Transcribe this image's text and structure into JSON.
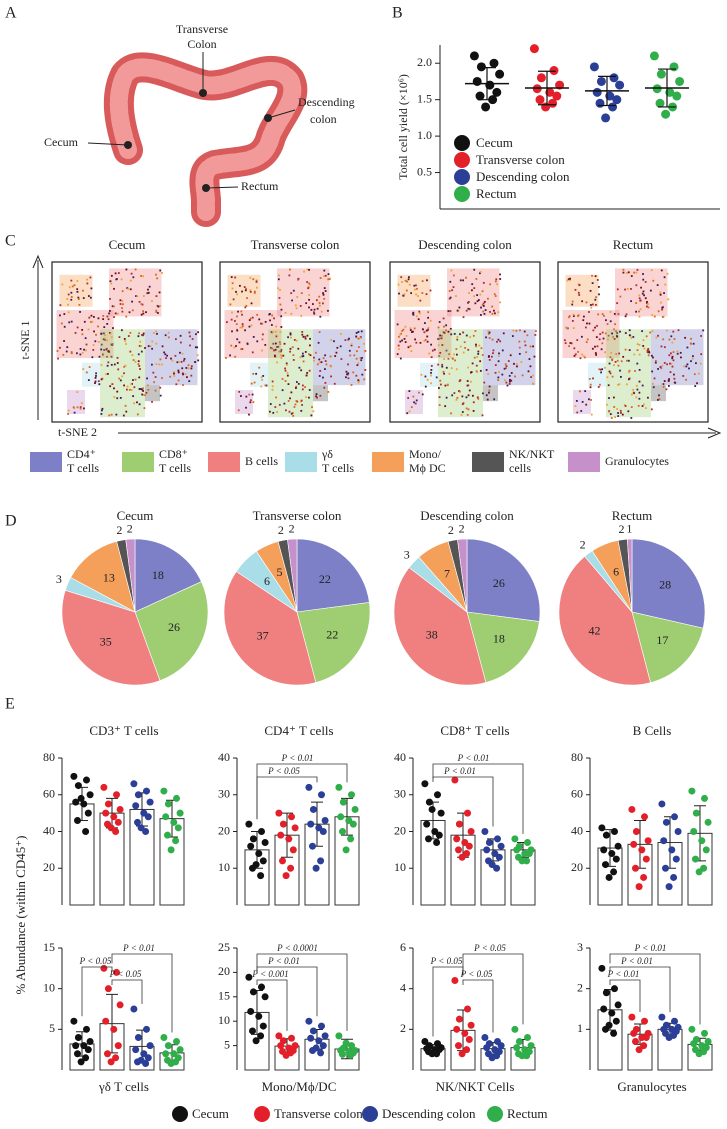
{
  "panel_labels": [
    "A",
    "B",
    "C",
    "D",
    "E"
  ],
  "diagram": {
    "transverse": [
      "Transverse",
      "Colon"
    ],
    "descending": [
      "Descending",
      "colon"
    ],
    "cecum": "Cecum",
    "rectum": "Rectum"
  },
  "groups": [
    {
      "name": "Cecum",
      "color": "#111111"
    },
    {
      "name": "Transverse colon",
      "color": "#e3202a"
    },
    {
      "name": "Descending colon",
      "color": "#2b3f97"
    },
    {
      "name": "Rectum",
      "color": "#2fae4a"
    }
  ],
  "cell_types": [
    {
      "lines": [
        "CD4⁺",
        "T cells"
      ],
      "color": "#7d80c6"
    },
    {
      "lines": [
        "CD8⁺",
        "T cells"
      ],
      "color": "#9fcd72"
    },
    {
      "lines": [
        "B cells"
      ],
      "color": "#f08080"
    },
    {
      "lines": [
        "γδ",
        "T cells"
      ],
      "color": "#a9dde8"
    },
    {
      "lines": [
        "Mono/",
        "Mϕ DC"
      ],
      "color": "#f5a05a"
    },
    {
      "lines": [
        "NK/NKT",
        "cells"
      ],
      "color": "#555555"
    },
    {
      "lines": [
        "Granulocytes"
      ],
      "color": "#c690cb"
    }
  ],
  "tsne": {
    "titles": [
      "Cecum",
      "Transverse colon",
      "Descending colon",
      "Rectum"
    ],
    "xlabel": "t-SNE 2",
    "ylabel": "t-SNE 1"
  },
  "abundance_ylabel": "% Abundance (within CD45⁺)",
  "chart_data": [
    {
      "type": "dot",
      "ylabel": "Total cell yield (×10⁶)",
      "ylim": [
        0,
        2.25
      ],
      "yticks": [
        0.5,
        {
          "value": 1,
          "label": "1.0"
        },
        1.5,
        {
          "value": 2,
          "label": "2.0"
        }
      ],
      "values": [
        1.72,
        1.66,
        1.62,
        1.66
      ],
      "errors": [
        0.22,
        0.23,
        0.2,
        0.26
      ],
      "points": [
        [
          2.1,
          2.0,
          1.95,
          1.85,
          1.75,
          1.7,
          1.6,
          1.55,
          1.5,
          1.4
        ],
        [
          2.2,
          1.9,
          1.8,
          1.7,
          1.65,
          1.6,
          1.55,
          1.5,
          1.45,
          1.4
        ],
        [
          1.95,
          1.8,
          1.75,
          1.7,
          1.6,
          1.55,
          1.5,
          1.45,
          1.4,
          1.25
        ],
        [
          2.1,
          1.95,
          1.85,
          1.75,
          1.65,
          1.6,
          1.55,
          1.45,
          1.4,
          1.3
        ]
      ]
    },
    {
      "type": "pie",
      "title": "Cecum",
      "values": [
        18,
        26,
        35,
        3,
        13,
        2,
        2
      ]
    },
    {
      "type": "pie",
      "title": "Transverse colon",
      "values": [
        22,
        22,
        37,
        6,
        5,
        2,
        2
      ]
    },
    {
      "type": "pie",
      "title": "Descending colon",
      "values": [
        26,
        18,
        38,
        3,
        7,
        2,
        2
      ]
    },
    {
      "type": "pie",
      "title": "Rectum",
      "values": [
        28,
        17,
        42,
        2,
        6,
        2,
        1
      ]
    },
    {
      "type": "bar_dot",
      "title": "CD3⁺ T cells",
      "ylim": [
        0,
        80
      ],
      "yticks": [
        20,
        40,
        60,
        80
      ],
      "values": [
        55,
        50,
        52,
        47
      ],
      "errors": [
        9,
        8,
        9,
        10
      ],
      "points": [
        [
          70,
          68,
          65,
          60,
          56,
          55,
          50,
          46,
          40,
          58
        ],
        [
          64,
          60,
          55,
          52,
          50,
          48,
          45,
          44,
          40,
          42
        ],
        [
          66,
          62,
          60,
          56,
          54,
          50,
          48,
          45,
          40,
          42
        ],
        [
          62,
          58,
          55,
          50,
          48,
          45,
          42,
          38,
          35,
          30
        ]
      ],
      "annotations": []
    },
    {
      "type": "bar_dot",
      "title": "CD4⁺ T cells",
      "ylim": [
        0,
        40
      ],
      "yticks": [
        10,
        20,
        30,
        40
      ],
      "values": [
        15,
        19,
        22,
        24
      ],
      "errors": [
        5,
        6,
        6,
        5
      ],
      "points": [
        [
          22,
          20,
          18,
          17,
          16,
          14,
          12,
          10,
          8,
          11
        ],
        [
          25,
          24,
          22,
          21,
          19,
          18,
          15,
          12,
          10,
          8
        ],
        [
          32,
          30,
          26,
          23,
          22,
          21,
          20,
          16,
          12,
          10
        ],
        [
          32,
          30,
          28,
          26,
          24,
          23,
          22,
          20,
          18,
          15
        ]
      ],
      "annotations": [
        {
          "label": "P < 0.05",
          "from": 0,
          "to": 2
        },
        {
          "label": "P < 0.01",
          "from": 0,
          "to": 3
        }
      ]
    },
    {
      "type": "bar_dot",
      "title": "CD8⁺ T cells",
      "ylim": [
        0,
        40
      ],
      "yticks": [
        10,
        20,
        30,
        40
      ],
      "values": [
        23,
        19,
        15,
        15
      ],
      "errors": [
        5,
        6,
        3,
        2
      ],
      "points": [
        [
          33,
          30,
          28,
          25,
          22,
          20,
          19,
          18,
          17,
          26
        ],
        [
          34,
          25,
          22,
          20,
          18,
          17,
          16,
          15,
          14,
          13
        ],
        [
          20,
          18,
          17,
          16,
          15,
          14,
          13,
          12,
          10,
          11
        ],
        [
          18,
          17,
          16,
          15,
          15,
          14,
          14,
          13,
          12,
          12
        ]
      ],
      "annotations": [
        {
          "label": "P < 0.01",
          "from": 0,
          "to": 2
        },
        {
          "label": "P < 0.01",
          "from": 0,
          "to": 3
        }
      ]
    },
    {
      "type": "bar_dot",
      "title": "B Cells",
      "ylim": [
        0,
        80
      ],
      "yticks": [
        20,
        40,
        60,
        80
      ],
      "values": [
        31,
        33,
        34,
        39
      ],
      "errors": [
        10,
        13,
        14,
        15
      ],
      "points": [
        [
          42,
          40,
          38,
          32,
          30,
          28,
          25,
          22,
          18,
          15
        ],
        [
          52,
          48,
          40,
          35,
          33,
          30,
          25,
          20,
          15,
          10
        ],
        [
          55,
          48,
          45,
          40,
          35,
          30,
          25,
          20,
          15,
          10
        ],
        [
          62,
          58,
          50,
          45,
          40,
          35,
          30,
          25,
          20,
          18
        ]
      ],
      "annotations": []
    },
    {
      "type": "bar_dot",
      "xlabel": "γδ T cells",
      "ylim": [
        0,
        15
      ],
      "yticks": [
        5,
        10,
        15
      ],
      "values": [
        3.2,
        5.7,
        2.9,
        2.1
      ],
      "errors": [
        1.5,
        3.6,
        2,
        1
      ],
      "points": [
        [
          6,
          5,
          4,
          3.5,
          3,
          3,
          2.5,
          2,
          1.5,
          1
        ],
        [
          12.5,
          12,
          10,
          8,
          6,
          5,
          3,
          2,
          1.5,
          1
        ],
        [
          7.5,
          5,
          4,
          3,
          2.5,
          2,
          1.5,
          1,
          0.8,
          1.2
        ],
        [
          4,
          3.5,
          3,
          2.5,
          2,
          2,
          1.5,
          1.2,
          1,
          0.8
        ]
      ],
      "annotations": [
        {
          "label": "P < 0.05",
          "from": 1,
          "to": 2
        },
        {
          "label": "P < 0.05",
          "from": 0,
          "to": 1
        },
        {
          "label": "P < 0.01",
          "from": 1,
          "to": 3
        }
      ]
    },
    {
      "type": "bar_dot",
      "xlabel": "Mono/Mϕ/DC",
      "ylim": [
        0,
        25
      ],
      "yticks": [
        5,
        10,
        15,
        20,
        25
      ],
      "values": [
        11.8,
        4.9,
        6.3,
        4.3
      ],
      "errors": [
        4.5,
        1.5,
        2,
        2
      ],
      "points": [
        [
          19,
          17,
          16,
          15,
          12,
          11,
          9,
          8,
          7,
          6
        ],
        [
          7,
          6.5,
          6,
          5,
          5,
          4.5,
          4,
          3.8,
          3.5,
          3
        ],
        [
          10,
          9,
          8,
          7,
          6.5,
          6,
          5,
          4,
          3.5,
          4.5
        ],
        [
          7,
          5,
          4.5,
          4,
          4,
          3.8,
          3.5,
          3.2,
          3,
          5.5
        ]
      ],
      "annotations": [
        {
          "label": "P < 0.001",
          "from": 0,
          "to": 1
        },
        {
          "label": "P < 0.01",
          "from": 0,
          "to": 2
        },
        {
          "label": "P < 0.0001",
          "from": 0,
          "to": 3
        }
      ]
    },
    {
      "type": "bar_dot",
      "xlabel": "NK/NKT Cells",
      "ylim": [
        0,
        6
      ],
      "yticks": [
        2,
        4,
        6
      ],
      "values": [
        1.05,
        1.95,
        1.05,
        1.1
      ],
      "errors": [
        0.2,
        1.0,
        0.3,
        0.4
      ],
      "points": [
        [
          1.4,
          1.3,
          1.2,
          1.1,
          1.05,
          1,
          1,
          0.9,
          0.8,
          0.8
        ],
        [
          4.4,
          3,
          2.5,
          2.2,
          2,
          1.8,
          1.5,
          1.2,
          1,
          0.8
        ],
        [
          1.6,
          1.4,
          1.3,
          1.2,
          1.1,
          1,
          0.9,
          0.8,
          0.7,
          0.6
        ],
        [
          2,
          1.6,
          1.4,
          1.2,
          1.1,
          1,
          0.9,
          0.8,
          0.7,
          0.7
        ]
      ],
      "annotations": [
        {
          "label": "P < 0.05",
          "from": 1,
          "to": 2
        },
        {
          "label": "P < 0.05",
          "from": 0,
          "to": 1
        },
        {
          "label": "P < 0.05",
          "from": 1,
          "to": 3
        }
      ]
    },
    {
      "type": "bar_dot",
      "xlabel": "Granulocytes",
      "ylim": [
        0,
        3
      ],
      "yticks": [
        1,
        2,
        3
      ],
      "values": [
        1.48,
        0.88,
        1.0,
        0.63
      ],
      "errors": [
        0.5,
        0.25,
        0.15,
        0.15
      ],
      "points": [
        [
          2.5,
          2.0,
          1.9,
          1.6,
          1.5,
          1.4,
          1.2,
          1.0,
          0.9,
          1.1
        ],
        [
          1.3,
          1.2,
          1.0,
          0.9,
          0.9,
          0.8,
          0.8,
          0.7,
          0.6,
          0.5
        ],
        [
          1.3,
          1.2,
          1.1,
          1.05,
          1,
          1,
          0.95,
          0.9,
          0.85,
          0.8
        ],
        [
          1.0,
          0.9,
          0.75,
          0.7,
          0.65,
          0.6,
          0.55,
          0.5,
          0.45,
          0.4
        ]
      ],
      "annotations": [
        {
          "label": "P < 0.01",
          "from": 0,
          "to": 1
        },
        {
          "label": "P < 0.01",
          "from": 0,
          "to": 2
        },
        {
          "label": "P < 0.01",
          "from": 0,
          "to": 3
        }
      ]
    }
  ]
}
